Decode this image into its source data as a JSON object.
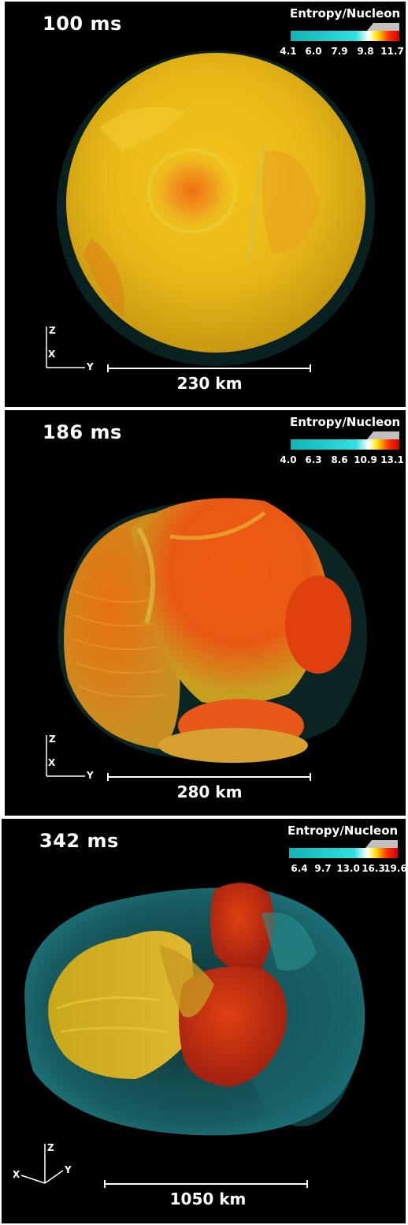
{
  "panels": [
    {
      "time": "100 ms",
      "colorbar": {
        "title": "Entropy/Nucleon",
        "ticks": [
          "4.1",
          "6.0",
          "7.9",
          "9.8",
          "11.7"
        ]
      },
      "scale_bar": "230 km",
      "axes": {
        "z": "Z",
        "x": "X",
        "y": "Y"
      }
    },
    {
      "time": "186 ms",
      "colorbar": {
        "title": "Entropy/Nucleon",
        "ticks": [
          "4.0",
          "6.3",
          "8.6",
          "10.9",
          "13.1"
        ]
      },
      "scale_bar": "280 km",
      "axes": {
        "z": "Z",
        "x": "X",
        "y": "Y"
      }
    },
    {
      "time": "342 ms",
      "colorbar": {
        "title": "Entropy/Nucleon",
        "ticks": [
          "6.4",
          "9.7",
          "13.0",
          "16.3",
          "19.6"
        ]
      },
      "scale_bar": "1050 km",
      "axes": {
        "z": "Z",
        "x": "X",
        "y": "Y"
      }
    }
  ],
  "colors": {
    "background": "#000000",
    "cyan": "#19c8c8",
    "yellow": "#e8d21a",
    "orange": "#f08a14",
    "red": "#e02010",
    "grey": "#c0c0c0"
  }
}
